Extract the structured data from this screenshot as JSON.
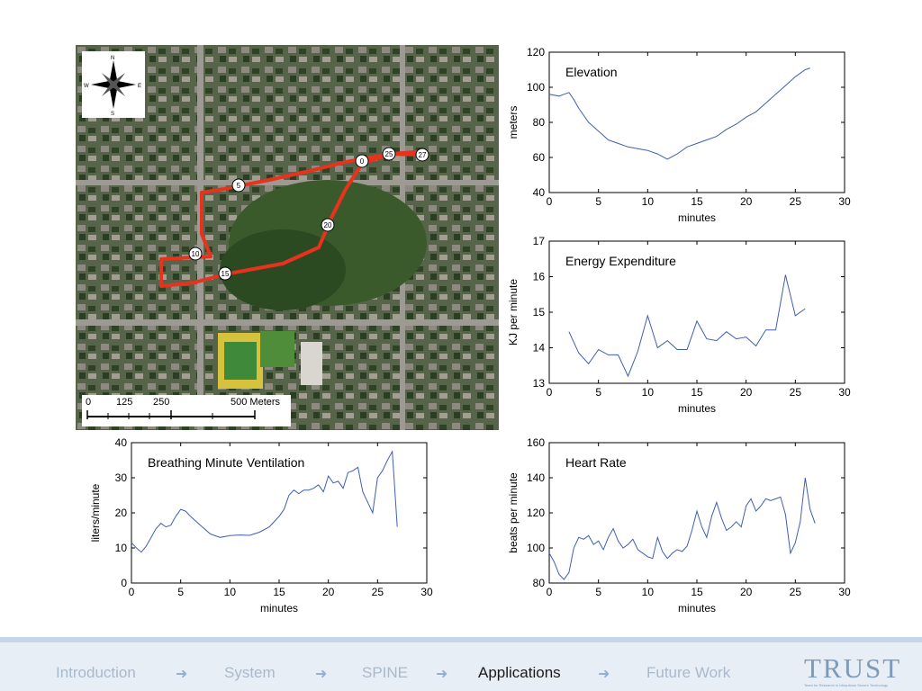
{
  "map": {
    "scale_labels": [
      "0",
      "125",
      "250",
      "500 Meters"
    ],
    "route_markers": [
      "0",
      "5",
      "10",
      "15",
      "20",
      "25",
      "27"
    ],
    "compass_letters": {
      "n": "N",
      "s": "S",
      "e": "E",
      "w": "W"
    },
    "route_color": "#e8321e"
  },
  "footer": {
    "nav": [
      {
        "label": "Introduction",
        "active": false
      },
      {
        "label": "System",
        "active": false
      },
      {
        "label": "SPINE",
        "active": false
      },
      {
        "label": "Applications",
        "active": true
      },
      {
        "label": "Future Work",
        "active": false
      }
    ],
    "logo_text": "TRUST",
    "logo_caption": "Team for Research in Ubiquitous Secure Technology"
  },
  "chart_data": [
    {
      "type": "line",
      "id": "elevation",
      "title": "Elevation",
      "xlabel": "minutes",
      "ylabel": "meters",
      "xlim": [
        0,
        30
      ],
      "ylim": [
        40,
        120
      ],
      "xticks": [
        0,
        5,
        10,
        15,
        20,
        25,
        30
      ],
      "yticks": [
        40,
        60,
        80,
        100,
        120
      ],
      "color": "#3f5fb0",
      "x": [
        0,
        1,
        1.5,
        2,
        2.5,
        3,
        4,
        5,
        6,
        7,
        8,
        9,
        10,
        11,
        12,
        13,
        14,
        15,
        16,
        17,
        18,
        19,
        20,
        21,
        22,
        23,
        24,
        25,
        26,
        26.5
      ],
      "y": [
        96,
        95,
        96,
        97,
        93,
        88,
        80,
        75,
        70,
        68,
        66,
        65,
        64,
        62,
        59,
        62,
        66,
        68,
        70,
        72,
        76,
        79,
        83,
        86,
        91,
        96,
        101,
        106,
        110,
        111
      ]
    },
    {
      "type": "line",
      "id": "energy",
      "title": "Energy Expenditure",
      "xlabel": "minutes",
      "ylabel": "KJ per minute",
      "xlim": [
        0,
        30
      ],
      "ylim": [
        13,
        17
      ],
      "xticks": [
        0,
        5,
        10,
        15,
        20,
        25,
        30
      ],
      "yticks": [
        13,
        14,
        15,
        16,
        17
      ],
      "color": "#3f5fb0",
      "x": [
        2,
        3,
        4,
        5,
        6,
        7,
        8,
        9,
        10,
        11,
        12,
        13,
        14,
        15,
        16,
        17,
        18,
        19,
        20,
        21,
        22,
        23,
        24,
        25,
        26
      ],
      "y": [
        14.45,
        13.85,
        13.55,
        13.95,
        13.8,
        13.8,
        13.2,
        13.9,
        14.9,
        14.0,
        14.2,
        13.95,
        13.95,
        14.75,
        14.25,
        14.2,
        14.45,
        14.25,
        14.3,
        14.05,
        14.5,
        14.5,
        16.05,
        14.9,
        15.1
      ]
    },
    {
      "type": "line",
      "id": "ventilation",
      "title": "Breathing Minute Ventilation",
      "xlabel": "minutes",
      "ylabel": "liters/minute",
      "xlim": [
        0,
        30
      ],
      "ylim": [
        0,
        40
      ],
      "xticks": [
        0,
        5,
        10,
        15,
        20,
        25,
        30
      ],
      "yticks": [
        0,
        10,
        20,
        30,
        40
      ],
      "color": "#3f5fb0",
      "x": [
        0,
        0.5,
        1,
        1.5,
        2,
        2.5,
        3,
        3.5,
        4,
        4.5,
        5,
        5.5,
        6,
        7,
        8,
        9,
        10,
        11,
        12,
        13,
        14,
        15,
        15.5,
        16,
        16.5,
        17,
        17.5,
        18,
        18.5,
        19,
        19.5,
        20,
        20.5,
        21,
        21.5,
        22,
        22.5,
        23,
        23.5,
        24,
        24.5,
        25,
        25.5,
        26,
        26.5,
        27
      ],
      "y": [
        11.5,
        10,
        8.8,
        10.5,
        13,
        15.5,
        17,
        16,
        16.5,
        19,
        21,
        20.5,
        19,
        16.5,
        14,
        13,
        13.5,
        13.7,
        13.6,
        14.5,
        16,
        19,
        21,
        25,
        26.5,
        25.5,
        26.5,
        26.5,
        27,
        28,
        26,
        30.5,
        28.5,
        29,
        27,
        31.5,
        32,
        33,
        26,
        23,
        20,
        30,
        32,
        35,
        37.5,
        16
      ]
    },
    {
      "type": "line",
      "id": "heartrate",
      "title": "Heart Rate",
      "xlabel": "minutes",
      "ylabel": "beats per minute",
      "xlim": [
        0,
        30
      ],
      "ylim": [
        80,
        160
      ],
      "xticks": [
        0,
        5,
        10,
        15,
        20,
        25,
        30
      ],
      "yticks": [
        80,
        100,
        120,
        140,
        160
      ],
      "color": "#3f5fb0",
      "x": [
        0,
        0.5,
        1,
        1.5,
        2,
        2.5,
        3,
        3.5,
        4,
        4.5,
        5,
        5.5,
        6,
        6.5,
        7,
        7.5,
        8,
        8.5,
        9,
        9.5,
        10,
        10.5,
        11,
        11.5,
        12,
        12.5,
        13,
        13.5,
        14,
        14.5,
        15,
        15.5,
        16,
        16.5,
        17,
        17.5,
        18,
        18.5,
        19,
        19.5,
        20,
        20.5,
        21,
        21.5,
        22,
        22.5,
        23,
        23.5,
        24,
        24.5,
        25,
        25.5,
        26,
        26.5,
        27
      ],
      "y": [
        97,
        92,
        85,
        82,
        86,
        100,
        106,
        105,
        107,
        102,
        104,
        99,
        106,
        111,
        104,
        100,
        102,
        105,
        99,
        97,
        95,
        94,
        106,
        98,
        94,
        97,
        99,
        98,
        101,
        110,
        121,
        112,
        106,
        118,
        126,
        117,
        110,
        112,
        115,
        112,
        124,
        128,
        121,
        124,
        128,
        127,
        128,
        129,
        119,
        97,
        103,
        115,
        140,
        122,
        114
      ]
    }
  ]
}
